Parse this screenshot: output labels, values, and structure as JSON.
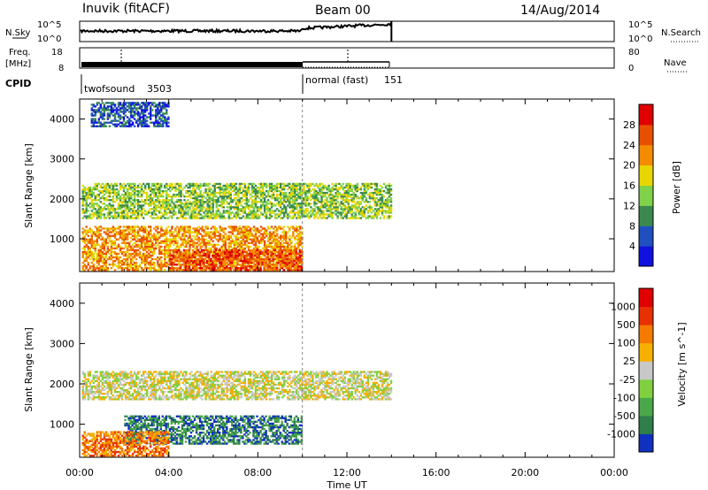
{
  "header": {
    "title": "Inuvik (fitACF)",
    "beam": "Beam 00",
    "date": "14/Aug/2014"
  },
  "noise_panel": {
    "left_label": "N.Sky",
    "right_label": "N.Search",
    "left_ticks": [
      "10^5",
      "10^0"
    ],
    "right_ticks": [
      "10^5",
      "10^0"
    ]
  },
  "freq_panel": {
    "left_label_1": "Freq.",
    "left_label_2": "[MHz]",
    "right_label": "Nave",
    "left_ticks": [
      "18",
      "8"
    ],
    "right_ticks": [
      "80",
      "0"
    ]
  },
  "cpid_panel": {
    "label": "CPID",
    "programs": [
      {
        "name": "twofsound",
        "id": "3503",
        "start_hour": 0
      },
      {
        "name": "normal (fast)",
        "id": "151",
        "start_hour": 10
      }
    ]
  },
  "axis": {
    "x_label": "Time UT",
    "x_ticks": [
      "00:00",
      "04:00",
      "08:00",
      "12:00",
      "16:00",
      "20:00",
      "00:00"
    ],
    "y_label": "Slant Range [km]",
    "y_ticks": [
      "1000",
      "2000",
      "3000",
      "4000"
    ]
  },
  "chart_data": [
    {
      "type": "heatmap",
      "title": "",
      "xlabel": "Time UT",
      "ylabel": "Slant Range [km]",
      "xlim": [
        0,
        24
      ],
      "ylim": [
        180,
        4500
      ],
      "data_end_hour": 14,
      "colorbar": {
        "label": "Power [dB]",
        "ticks": [
          "4",
          "8",
          "12",
          "16",
          "20",
          "24",
          "28"
        ],
        "colors": [
          "#1010e0",
          "#2050c0",
          "#3a8a50",
          "#7fd24a",
          "#e8d600",
          "#f58b00",
          "#e85000",
          "#e00000"
        ]
      },
      "regions": [
        {
          "t0": 0.1,
          "t1": 14,
          "r0": 1500,
          "r1": 2400,
          "level": 3
        },
        {
          "t0": 0.1,
          "t1": 10,
          "r0": 200,
          "r1": 1300,
          "level": 5
        },
        {
          "t0": 4,
          "t1": 10,
          "r0": 200,
          "r1": 700,
          "level": 6
        },
        {
          "t0": 0.5,
          "t1": 4,
          "r0": 3800,
          "r1": 4400,
          "level": 1
        }
      ]
    },
    {
      "type": "heatmap",
      "title": "",
      "xlabel": "Time UT",
      "ylabel": "Slant Range [km]",
      "xlim": [
        0,
        24
      ],
      "ylim": [
        180,
        4500
      ],
      "data_end_hour": 14,
      "colorbar": {
        "label": "Velocity [m s^-1]",
        "ticks": [
          "1000",
          "500",
          "100",
          "25",
          "-25",
          "-100",
          "-500",
          "-1000"
        ],
        "colors": [
          "#1030c0",
          "#2e7f4a",
          "#4aa84a",
          "#80d040",
          "#c8c8c8",
          "#f5b000",
          "#f57a00",
          "#e83000",
          "#e00000"
        ]
      },
      "regions": [
        {
          "t0": 0.1,
          "t1": 14,
          "r0": 1600,
          "r1": 2300,
          "level": 4
        },
        {
          "t0": 2,
          "t1": 10,
          "r0": 500,
          "r1": 1200,
          "level": 1
        },
        {
          "t0": 0.1,
          "t1": 4,
          "r0": 200,
          "r1": 800,
          "level": 6
        }
      ]
    }
  ]
}
